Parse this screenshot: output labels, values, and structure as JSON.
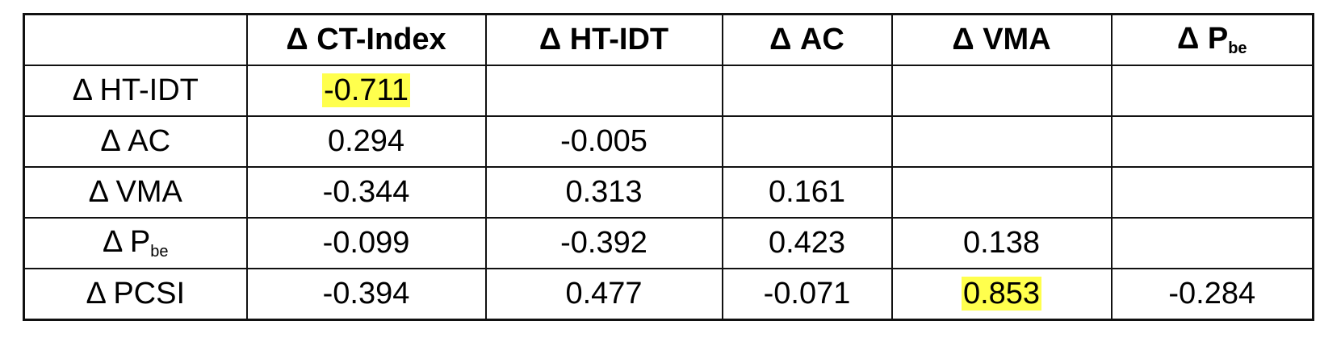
{
  "table": {
    "header": [
      "Δ CT-Index",
      "Δ HT-IDT",
      "Δ AC",
      "Δ VMA",
      {
        "text": "Δ P",
        "sub": "be"
      }
    ],
    "rows": [
      {
        "label": "Δ HT-IDT",
        "values": [
          -0.711
        ]
      },
      {
        "label": "Δ AC",
        "values": [
          0.294,
          -0.005
        ]
      },
      {
        "label": "Δ VMA",
        "values": [
          -0.344,
          0.313,
          0.161
        ]
      },
      {
        "label": {
          "text": "Δ P",
          "sub": "be"
        },
        "values": [
          -0.099,
          -0.392,
          0.423,
          0.138
        ]
      },
      {
        "label": "Δ PCSI",
        "values": [
          -0.394,
          0.477,
          -0.071,
          0.853,
          -0.284
        ]
      }
    ]
  }
}
